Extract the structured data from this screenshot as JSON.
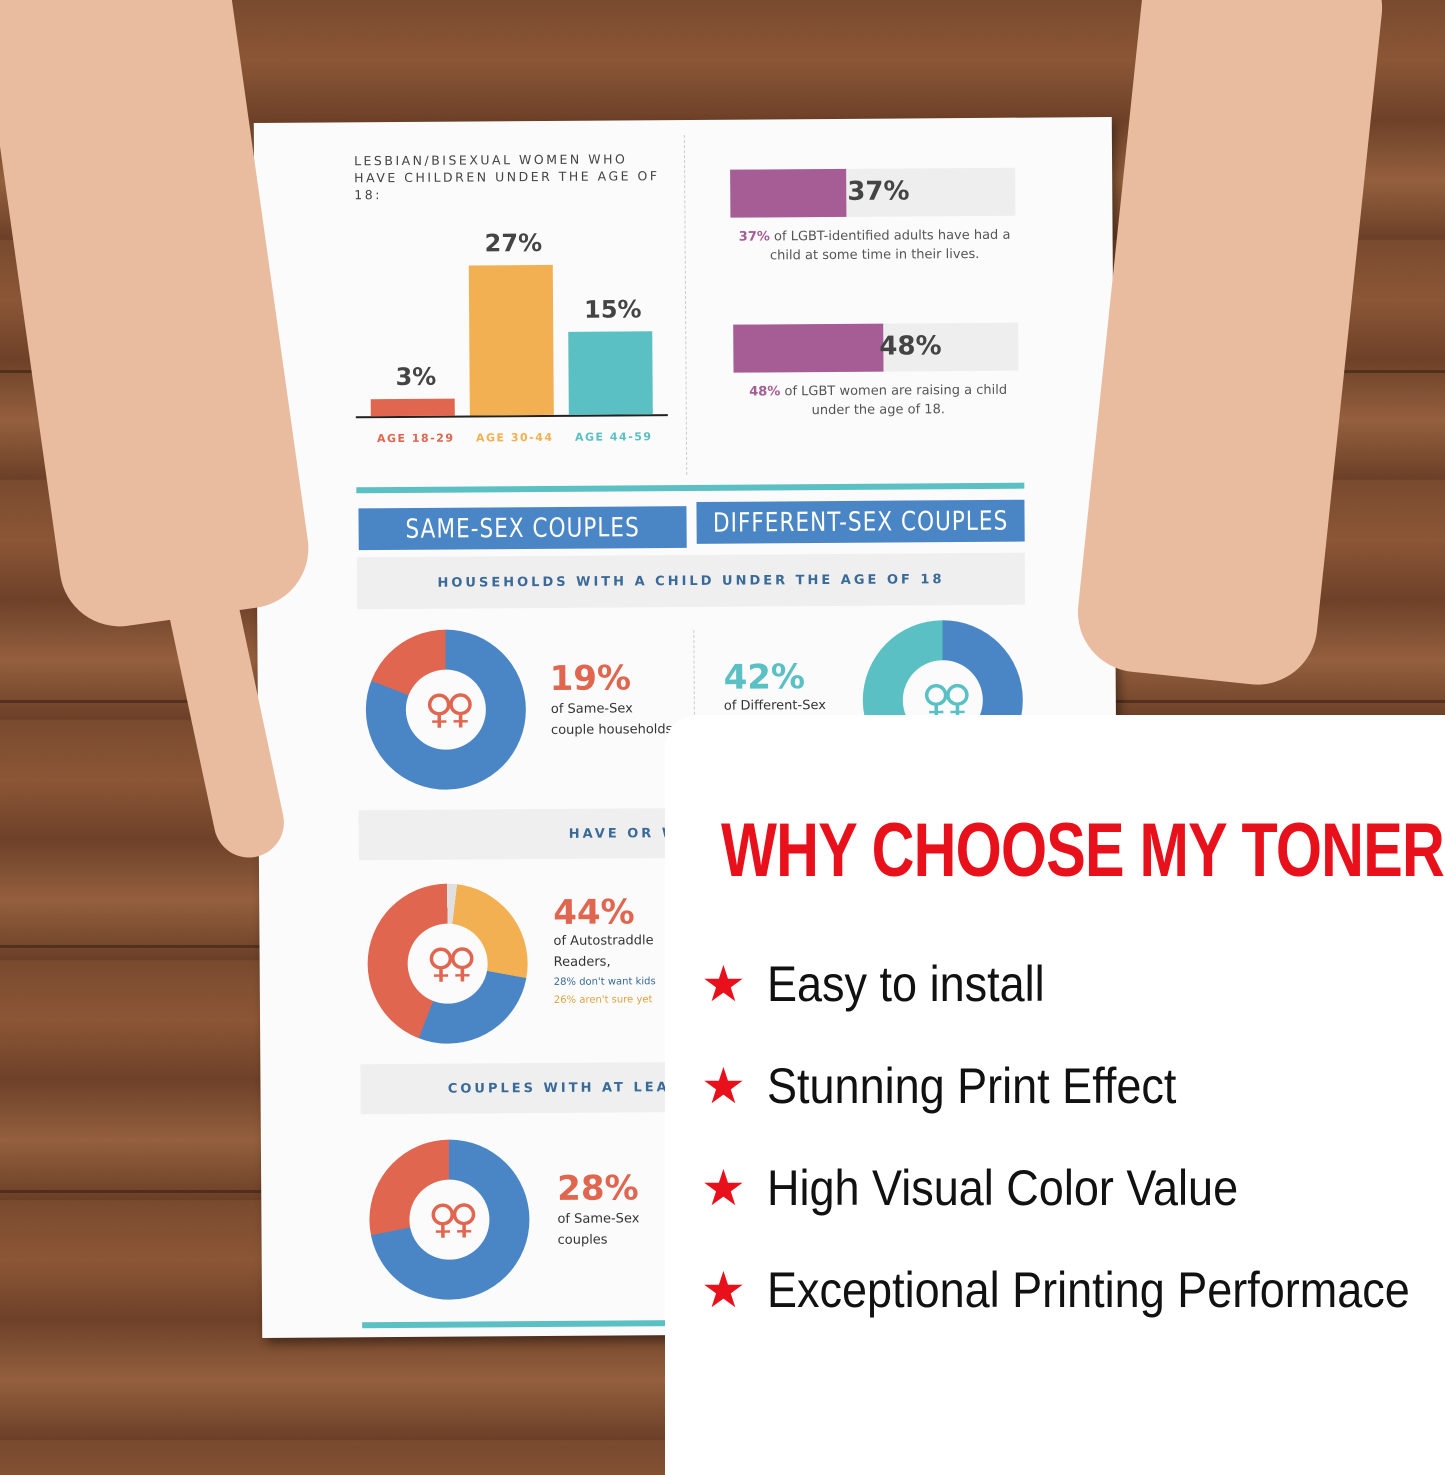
{
  "infographic": {
    "bar_title": "LESBIAN/BISEXUAL WOMEN WHO HAVE CHILDREN UNDER THE AGE OF 18:",
    "chart_data": {
      "type": "bar",
      "categories": [
        "AGE 18-29",
        "AGE 30-44",
        "AGE 44-59"
      ],
      "values": [
        3,
        27,
        15
      ],
      "labels": [
        "3%",
        "27%",
        "15%"
      ],
      "colors": [
        "#e06650",
        "#f3b052",
        "#5bc0c4"
      ]
    },
    "stats": [
      {
        "value": "37%",
        "percent": 37,
        "text": "of LGBT-identified adults have had a child at some time in their lives."
      },
      {
        "value": "48%",
        "percent": 48,
        "text": "of LGBT women are raising a child under the age of 18."
      }
    ],
    "banner_left": "SAME-SEX COUPLES",
    "banner_right": "DIFFERENT-SEX COUPLES",
    "section1": "HOUSEHOLDS WITH A CHILD UNDER THE AGE OF 18",
    "section2": "HAVE OR WANT T",
    "section3": "COUPLES WITH AT LEAST ONE",
    "donut1": {
      "value": "19%",
      "line1": "of Same-Sex",
      "line2": "couple households"
    },
    "donut2": {
      "value": "42%",
      "line1": "of Different-Sex"
    },
    "donut3": {
      "value": "44%",
      "line1": "of Autostraddle",
      "line2": "Readers,",
      "line3": "28% don't want kids",
      "line4": "26% aren't sure yet"
    },
    "donut4": {
      "value": "28%",
      "line1": "of Same-Sex",
      "line2": "couples"
    },
    "symbol": "♀♀"
  },
  "card": {
    "headline": "WHY CHOOSE MY TONER",
    "features": [
      "Easy to install",
      "Stunning Print Effect",
      "High Visual Color Value",
      "Exceptional Printing Performace"
    ],
    "star_icon": "★",
    "accent": "#e8101a"
  }
}
